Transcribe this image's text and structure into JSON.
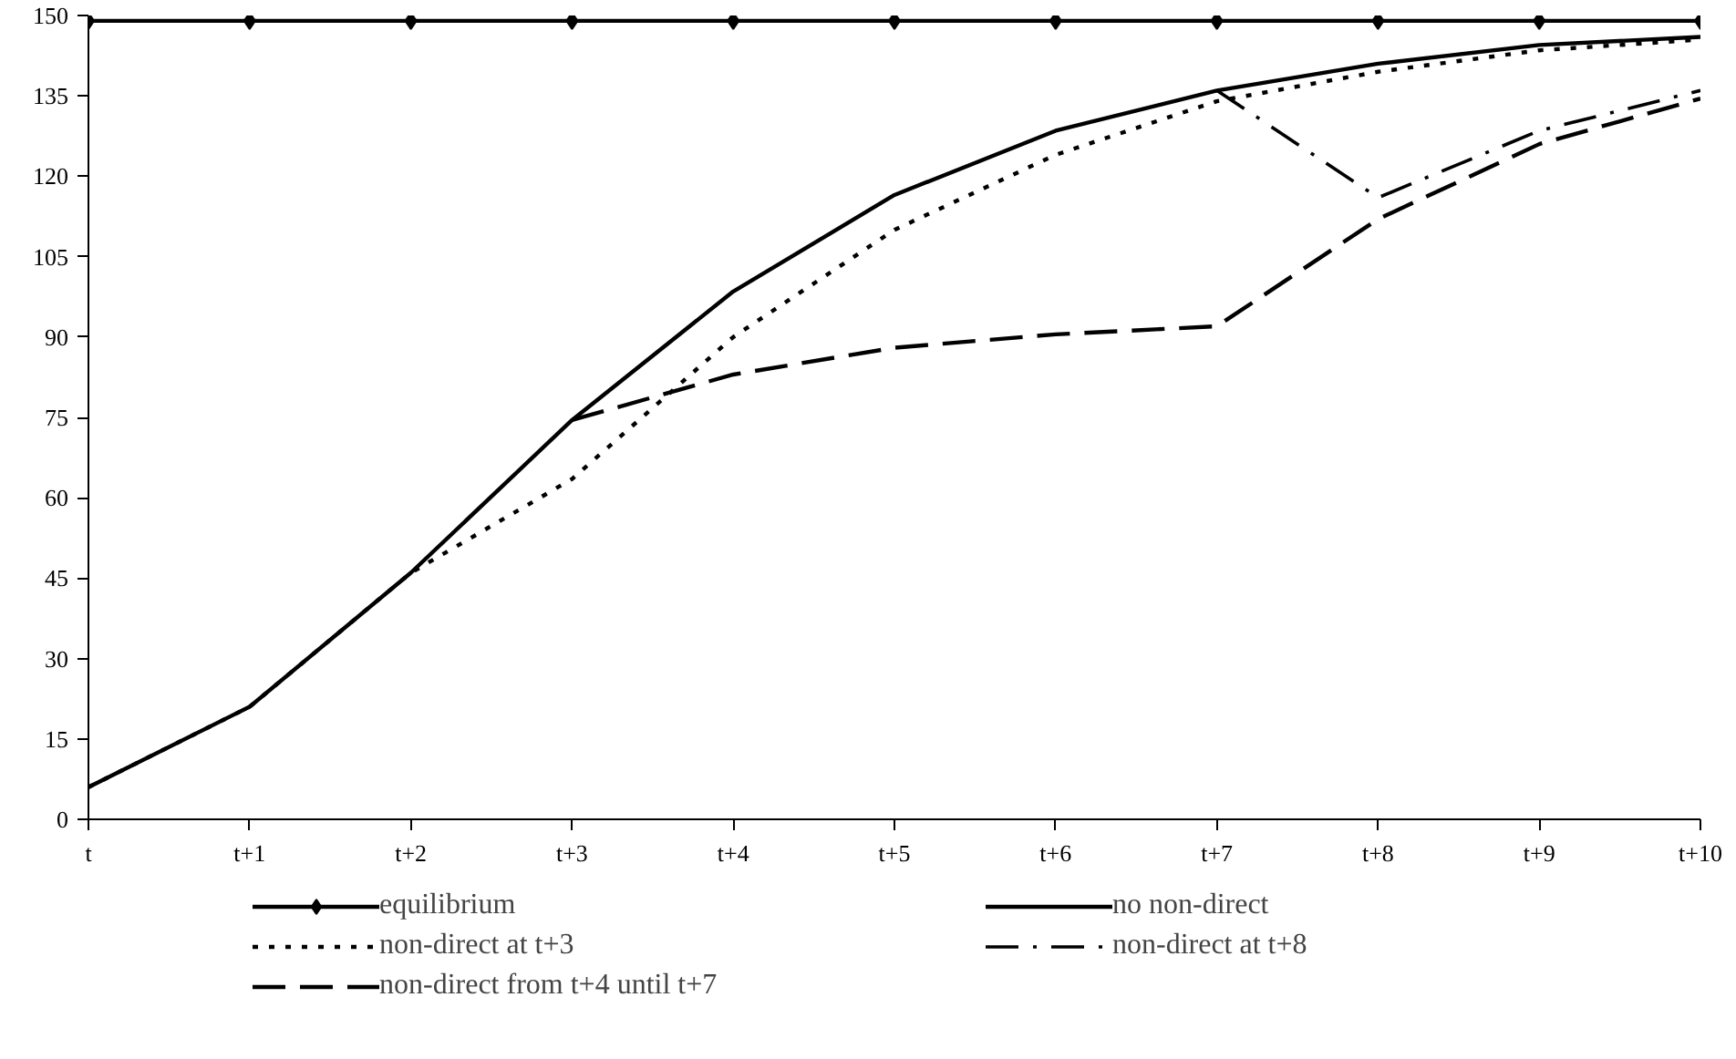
{
  "chart_data": {
    "type": "line",
    "categories": [
      "t",
      "t+1",
      "t+2",
      "t+3",
      "t+4",
      "t+5",
      "t+6",
      "t+7",
      "t+8",
      "t+9",
      "t+10"
    ],
    "ylim": [
      0,
      150
    ],
    "yticks": [
      0,
      15,
      30,
      45,
      60,
      75,
      90,
      105,
      120,
      135,
      150
    ],
    "grid": false,
    "legend": "bottom",
    "series": [
      {
        "name": "equilibrium",
        "color": "#000000",
        "marker": "diamond",
        "line_style": "solid",
        "values": [
          149,
          149,
          149,
          149,
          149,
          149,
          149,
          149,
          149,
          149,
          149
        ]
      },
      {
        "name": "no non-direct",
        "color": "#000000",
        "line_style": "solid",
        "values": [
          6,
          21,
          46,
          74.5,
          98.5,
          116.5,
          128.5,
          136,
          141,
          144.5,
          146
        ]
      },
      {
        "name": "non-direct at t+3",
        "color": "#000000",
        "line_style": "dotted",
        "values": [
          6,
          21,
          46,
          63.5,
          90,
          110,
          124,
          134,
          139.5,
          143.5,
          145.5
        ]
      },
      {
        "name": "non-direct at t+8",
        "color": "#000000",
        "line_style": "dashdot",
        "values": [
          null,
          null,
          null,
          null,
          null,
          null,
          null,
          136,
          116,
          128.5,
          136
        ]
      },
      {
        "name": "non-direct from t+4 until t+7",
        "color": "#000000",
        "line_style": "dashed",
        "values": [
          null,
          null,
          null,
          74.5,
          83,
          88,
          90.5,
          92,
          112,
          126,
          134.5
        ]
      }
    ]
  }
}
